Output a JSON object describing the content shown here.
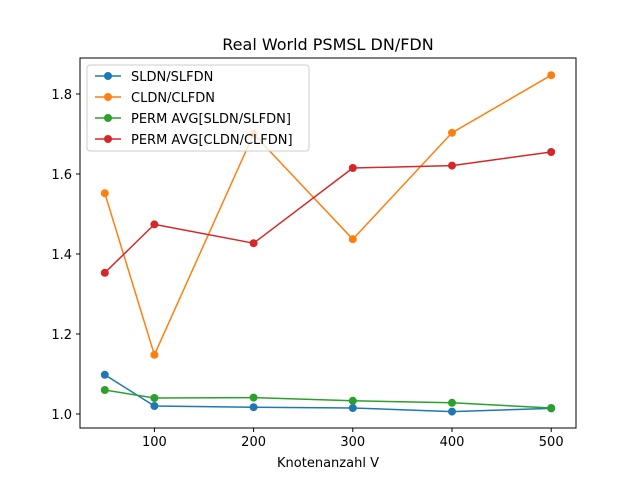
{
  "chart_data": {
    "type": "line",
    "title": "Real World PSMSL DN/FDN",
    "xlabel": "Knotenanzahl V",
    "ylabel": "",
    "x": [
      50,
      100,
      200,
      300,
      400,
      500
    ],
    "xlim": [
      25,
      525
    ],
    "ylim": [
      0.965,
      1.89
    ],
    "xticks": [
      100,
      200,
      300,
      400,
      500
    ],
    "xtick_labels": [
      "100",
      "200",
      "300",
      "400",
      "500"
    ],
    "yticks": [
      1.0,
      1.2,
      1.4,
      1.6,
      1.8
    ],
    "ytick_labels": [
      "1.0",
      "1.2",
      "1.4",
      "1.6",
      "1.8"
    ],
    "grid": false,
    "legend_position": "upper-left",
    "series": [
      {
        "name": "SLDN/SLFDN",
        "color": "#1f77b4",
        "values": [
          1.098,
          1.02,
          1.017,
          1.015,
          1.006,
          1.014
        ]
      },
      {
        "name": "CLDN/CLFDN",
        "color": "#ff7f0e",
        "values": [
          1.552,
          1.148,
          1.7,
          1.437,
          1.703,
          1.847
        ]
      },
      {
        "name": "PERM AVG[SLDN/SLFDN]",
        "color": "#2ca02c",
        "values": [
          1.06,
          1.04,
          1.041,
          1.033,
          1.028,
          1.015
        ]
      },
      {
        "name": "PERM AVG[CLDN/CLFDN]",
        "color": "#d62728",
        "values": [
          1.353,
          1.474,
          1.427,
          1.615,
          1.621,
          1.655
        ]
      }
    ]
  }
}
